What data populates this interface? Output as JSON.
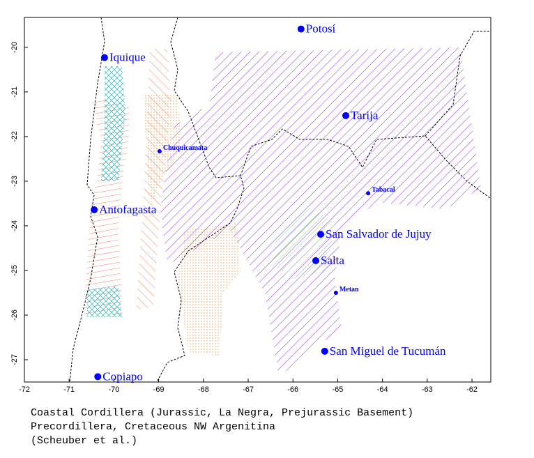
{
  "chart_data": {
    "type": "map",
    "xlim": [
      -72,
      -61.58
    ],
    "ylim": [
      -27.5,
      -19.33
    ],
    "xticks": [
      -72,
      -71,
      -70,
      -69,
      -68,
      -67,
      -66,
      -65,
      -64,
      -63,
      -62
    ],
    "yticks": [
      -20,
      -21,
      -22,
      -23,
      -24,
      -25,
      -26,
      -27
    ],
    "cities": [
      {
        "name": "Potosí",
        "lon": -65.82,
        "lat": -19.59
      },
      {
        "name": "Iquique",
        "lon": -70.21,
        "lat": -20.23
      },
      {
        "name": "Tarija",
        "lon": -64.82,
        "lat": -21.53
      },
      {
        "name": "Antofagasta",
        "lon": -70.44,
        "lat": -23.64
      },
      {
        "name": "San Salvador de Jujuy",
        "lon": -65.38,
        "lat": -24.19
      },
      {
        "name": "Salta",
        "lon": -65.49,
        "lat": -24.78
      },
      {
        "name": "San Miguel de Tucumán",
        "lon": -65.29,
        "lat": -26.81
      },
      {
        "name": "Copiapo",
        "lon": -70.36,
        "lat": -27.38
      }
    ],
    "towns": [
      {
        "name": "Chuquicamata",
        "lon": -68.98,
        "lat": -22.33
      },
      {
        "name": "Tabacal",
        "lon": -64.32,
        "lat": -23.27
      },
      {
        "name": "Metan",
        "lon": -65.04,
        "lat": -25.5
      }
    ],
    "city_color": "#0000ff",
    "caption": [
      "Coastal Cordillera (Jurassic, La Negra, Prejurassic Basement)",
      "Precordillera, Cretaceous NW Argenitina",
      "(Scheuber et al.)"
    ]
  }
}
